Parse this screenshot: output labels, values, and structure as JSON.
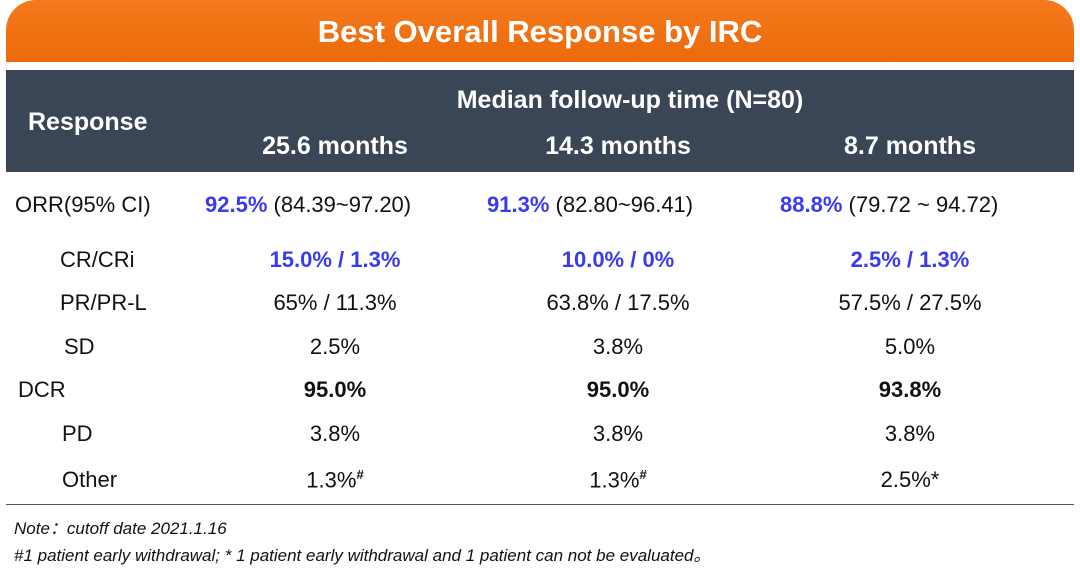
{
  "title": "Best Overall Response by IRC",
  "table": {
    "header": {
      "response": "Response",
      "group": "Median follow-up time (N=80)",
      "columns": [
        "25.6 months",
        "14.3 months",
        "8.7 months"
      ]
    },
    "rows": [
      {
        "label": "ORR(95% CI)",
        "cells": [
          {
            "value": "92.5%",
            "ci": "(84.39~97.20)"
          },
          {
            "value": "91.3%",
            "ci": "(82.80~96.41)"
          },
          {
            "value": "88.8%",
            "ci": "(79.72 ~ 94.72)"
          }
        ]
      },
      {
        "label": "CR/CRi",
        "cells": [
          "15.0% / 1.3%",
          "10.0% / 0%",
          "2.5% / 1.3%"
        ]
      },
      {
        "label": "PR/PR-L",
        "cells": [
          "65% / 11.3%",
          "63.8% / 17.5%",
          "57.5% / 27.5%"
        ]
      },
      {
        "label": "SD",
        "cells": [
          "2.5%",
          "3.8%",
          "5.0%"
        ]
      },
      {
        "label": "DCR",
        "cells": [
          "95.0%",
          "95.0%",
          "93.8%"
        ]
      },
      {
        "label": "PD",
        "cells": [
          "3.8%",
          "3.8%",
          "3.8%"
        ]
      },
      {
        "label": "Other",
        "cells": [
          {
            "value": "1.3%",
            "mark": "#"
          },
          {
            "value": "1.3%",
            "mark": "#"
          },
          {
            "value": "2.5%",
            "mark": "*"
          }
        ]
      }
    ]
  },
  "notes": [
    "Note：cutoff date 2021.1.16",
    "#1 patient early withdrawal; * 1 patient early withdrawal  and 1 patient can not be evaluated。"
  ]
}
